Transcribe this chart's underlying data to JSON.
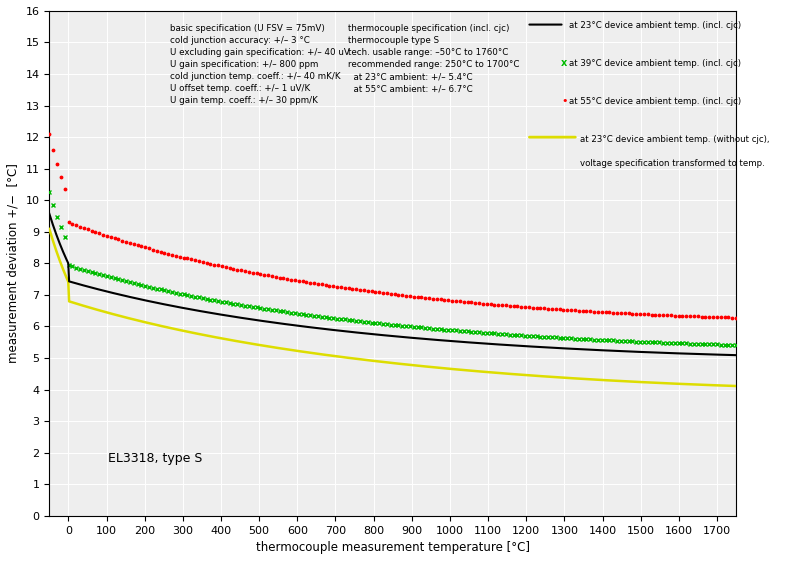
{
  "xlabel": "thermocouple measurement temperature [°C]",
  "ylabel": "measurement deviation +/−  [°C]",
  "xlim": [
    -50,
    1750
  ],
  "ylim": [
    0,
    16
  ],
  "xticks": [
    0,
    100,
    200,
    300,
    400,
    500,
    600,
    700,
    800,
    900,
    1000,
    1100,
    1200,
    1300,
    1400,
    1500,
    1600,
    1700
  ],
  "yticks": [
    0,
    1,
    2,
    3,
    4,
    5,
    6,
    7,
    8,
    9,
    10,
    11,
    12,
    13,
    14,
    15,
    16
  ],
  "annotation": "EL3318, type S",
  "text_basic_line1": "basic specification (U FSV = 75mV)",
  "text_basic_line2": "cold junction accuracy: +/– 3 °C",
  "text_basic_line3": "U excluding gain specification: +/– 40 uV",
  "text_basic_line4": "U gain specification: +/– 800 ppm",
  "text_basic_line5": "cold junction temp. coeff.: +/– 40 mK/K",
  "text_basic_line6": "U offset temp. coeff.: +/– 1 uV/K",
  "text_basic_line7": "U gain temp. coeff.: +/– 30 ppm/K",
  "text_tc_line1": "thermocouple specification (incl. cjc)",
  "text_tc_line2": "thermocouple type S",
  "text_tc_line3": "tech. usable range: –50°C to 1760°C",
  "text_tc_line4": "recommended range: 250°C to 1700°C",
  "text_tc_line5": "  at 23°C ambient: +/– 5.4°C",
  "text_tc_line6": "  at 55°C ambient: +/– 6.7°C",
  "legend_23_incl": "at 23°C device ambient temp. (incl. cjc)",
  "legend_39_incl": "at 39°C device ambient temp. (incl. cjc)",
  "legend_55_incl": "at 55°C device ambient temp. (incl. cjc)",
  "legend_23_excl_1": "at 23°C device ambient temp. (without cjc),",
  "legend_23_excl_2": "voltage specification transformed to temp.",
  "color_black": "#000000",
  "color_green": "#00bb00",
  "color_red": "#ff0000",
  "color_yellow": "#dddd00",
  "bg_color": "#eeeeee"
}
